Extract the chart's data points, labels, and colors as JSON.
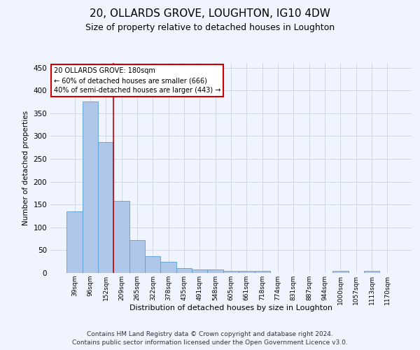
{
  "title1": "20, OLLARDS GROVE, LOUGHTON, IG10 4DW",
  "title2": "Size of property relative to detached houses in Loughton",
  "xlabel": "Distribution of detached houses by size in Loughton",
  "ylabel": "Number of detached properties",
  "categories": [
    "39sqm",
    "96sqm",
    "152sqm",
    "209sqm",
    "265sqm",
    "322sqm",
    "378sqm",
    "435sqm",
    "491sqm",
    "548sqm",
    "605sqm",
    "661sqm",
    "718sqm",
    "774sqm",
    "831sqm",
    "887sqm",
    "944sqm",
    "1000sqm",
    "1057sqm",
    "1113sqm",
    "1170sqm"
  ],
  "values": [
    135,
    375,
    286,
    158,
    72,
    37,
    25,
    10,
    8,
    7,
    5,
    4,
    4,
    0,
    0,
    0,
    0,
    4,
    0,
    4,
    0
  ],
  "bar_color": "#aec6e8",
  "bar_edge_color": "#5a9fd4",
  "grid_color": "#d0d8e8",
  "vline_x": 2.5,
  "vline_color": "#cc0000",
  "annotation_line1": "20 OLLARDS GROVE: 180sqm",
  "annotation_line2": "← 60% of detached houses are smaller (666)",
  "annotation_line3": "40% of semi-detached houses are larger (443) →",
  "annotation_box_color": "#ffffff",
  "annotation_box_edge_color": "#cc0000",
  "footnote1": "Contains HM Land Registry data © Crown copyright and database right 2024.",
  "footnote2": "Contains public sector information licensed under the Open Government Licence v3.0.",
  "ylim": [
    0,
    460
  ],
  "yticks": [
    0,
    50,
    100,
    150,
    200,
    250,
    300,
    350,
    400,
    450
  ],
  "title1_fontsize": 11,
  "title2_fontsize": 9,
  "footnote_fontsize": 6.5,
  "bg_color": "#f0f4ff"
}
